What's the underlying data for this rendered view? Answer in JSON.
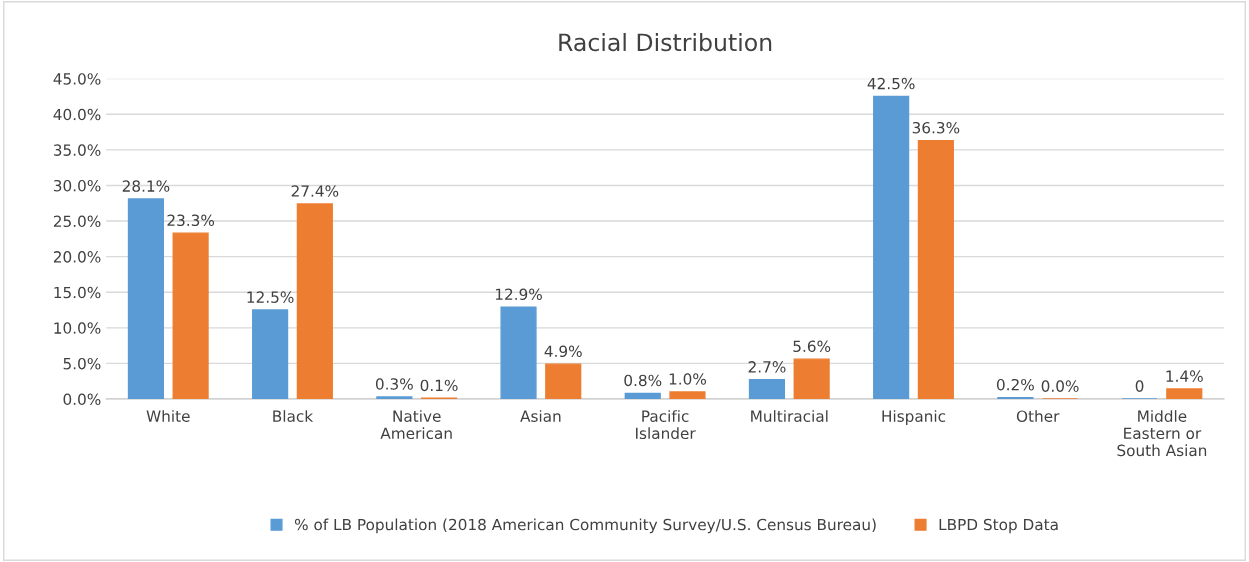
{
  "chart_data": {
    "type": "bar",
    "title": "Racial Distribution",
    "categories": [
      "White",
      "Black",
      "Native\nAmerican",
      "Asian",
      "Pacific\nIslander",
      "Multiracial",
      "Hispanic",
      "Other",
      "Middle\nEastern or\nSouth Asian"
    ],
    "series": [
      {
        "name": "% of LB Population (2018 American Community Survey/U.S. Census Bureau)",
        "color": "#5b9bd5",
        "values": [
          28.1,
          12.5,
          0.3,
          12.9,
          0.8,
          2.7,
          42.5,
          0.2,
          0
        ],
        "value_labels": [
          "28.1%",
          "12.5%",
          "0.3%",
          "12.9%",
          "0.8%",
          "2.7%",
          "42.5%",
          "0.2%",
          "0"
        ]
      },
      {
        "name": "LBPD Stop Data",
        "color": "#ed7d31",
        "values": [
          23.3,
          27.4,
          0.1,
          4.9,
          1.0,
          5.6,
          36.3,
          0.0,
          1.4
        ],
        "value_labels": [
          "23.3%",
          "27.4%",
          "0.1%",
          "4.9%",
          "1.0%",
          "5.6%",
          "36.3%",
          "0.0%",
          "1.4%"
        ]
      }
    ],
    "ylim": [
      0,
      45
    ],
    "yticks": [
      {
        "value": 0,
        "label": "0.0%"
      },
      {
        "value": 5,
        "label": "5.0%"
      },
      {
        "value": 10,
        "label": "10.0%"
      },
      {
        "value": 15,
        "label": "15.0%"
      },
      {
        "value": 20,
        "label": "20.0%"
      },
      {
        "value": 25,
        "label": "25.0%"
      },
      {
        "value": 30,
        "label": "30.0%"
      },
      {
        "value": 35,
        "label": "35.0%"
      },
      {
        "value": 40,
        "label": "40.0%"
      },
      {
        "value": 45,
        "label": "45.0%"
      }
    ],
    "grid": "y",
    "legend": "bottom"
  }
}
